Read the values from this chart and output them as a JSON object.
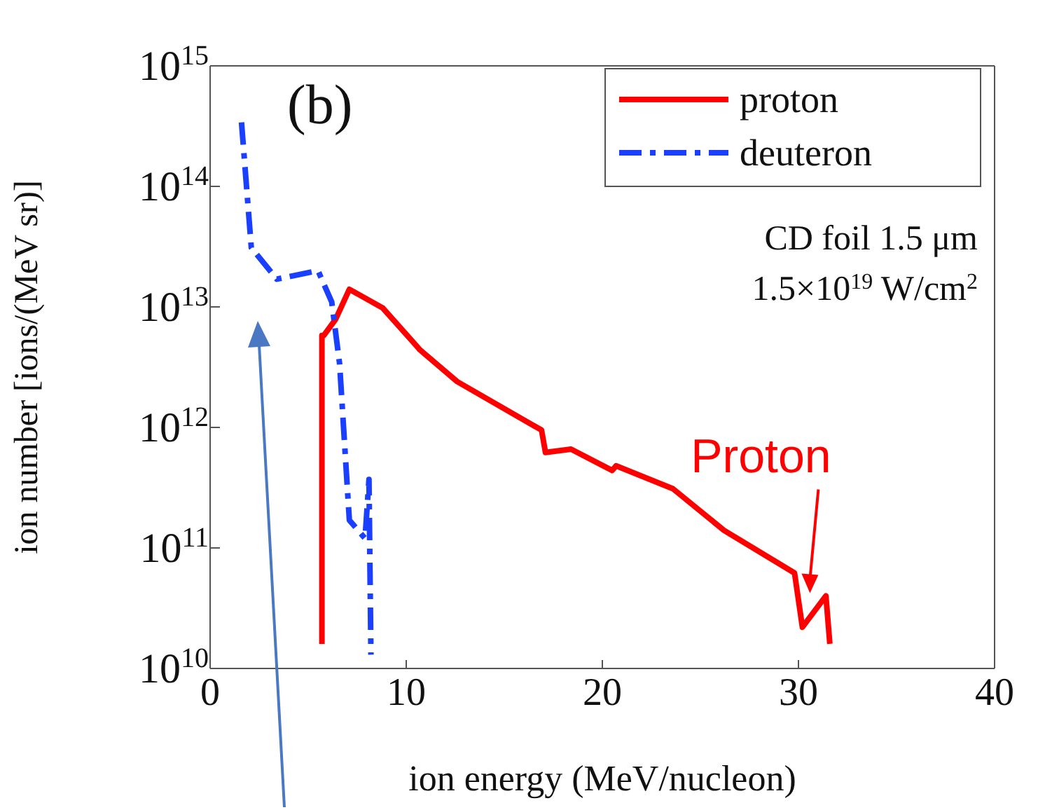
{
  "chart_data": {
    "type": "line",
    "xlabel": "ion energy (MeV/nucleon)",
    "ylabel": "ion number [ions/(MeV sr)]",
    "xlim": [
      0,
      40
    ],
    "xticks": [
      0,
      10,
      20,
      30,
      40
    ],
    "ylim": [
      10000000000.0,
      1000000000000000.0
    ],
    "yticks": [
      {
        "value": 10000000000.0,
        "label": "10$^{10}$"
      },
      {
        "value": 100000000000.0,
        "label": "10$^{11}$"
      },
      {
        "value": 1000000000000.0,
        "label": "10$^{12}$"
      },
      {
        "value": 10000000000000.0,
        "label": "10$^{13}$"
      },
      {
        "value": 100000000000000.0,
        "label": "10$^{14}$"
      },
      {
        "value": 1000000000000000.0,
        "label": "10$^{15}$"
      }
    ],
    "log": "y",
    "grid": false,
    "legend": "top right",
    "series": [
      {
        "name": "proton",
        "color": "#ff0000",
        "line_style": "solid",
        "x": [
          5.7,
          5.7,
          5.8,
          6.4,
          7.1,
          8.8,
          10.5,
          10.7,
          12.6,
          16.9,
          17.1,
          18.4,
          20.5,
          20.7,
          23.6,
          26.2,
          29.8,
          30.2,
          31.4,
          31.6
        ],
        "values": [
          16000000000.0,
          5800000000000.0,
          5800000000000.0,
          7900000000000.0,
          14000000000000.0,
          9800000000000.0,
          4800000000000.0,
          4400000000000.0,
          2400000000000.0,
          950000000000.0,
          620000000000.0,
          660000000000.0,
          440000000000.0,
          480000000000.0,
          310000000000.0,
          140000000000.0,
          62000000000.0,
          22000000000.0,
          40000000000.0,
          16000000000.0
        ]
      },
      {
        "name": "deuteron",
        "color": "#1a3fff",
        "line_style": "dashdot",
        "x": [
          1.6,
          2.1,
          3.4,
          5.5,
          6.2,
          6.6,
          7.1,
          7.9,
          8.1,
          8.2
        ],
        "values": [
          340000000000000.0,
          31000000000000.0,
          17000000000000.0,
          20000000000000.0,
          11000000000000.0,
          3400000000000.0,
          170000000000.0,
          120000000000.0,
          370000000000.0,
          13000000000.0
        ]
      }
    ],
    "annotations": [
      "(b)",
      "CD foil 1.5 μm",
      "1.5×10$^{19}$ W/cm$^{2}$",
      {
        "text": "Proton",
        "x": 30.8,
        "y": 40000000000.0
      }
    ]
  }
}
